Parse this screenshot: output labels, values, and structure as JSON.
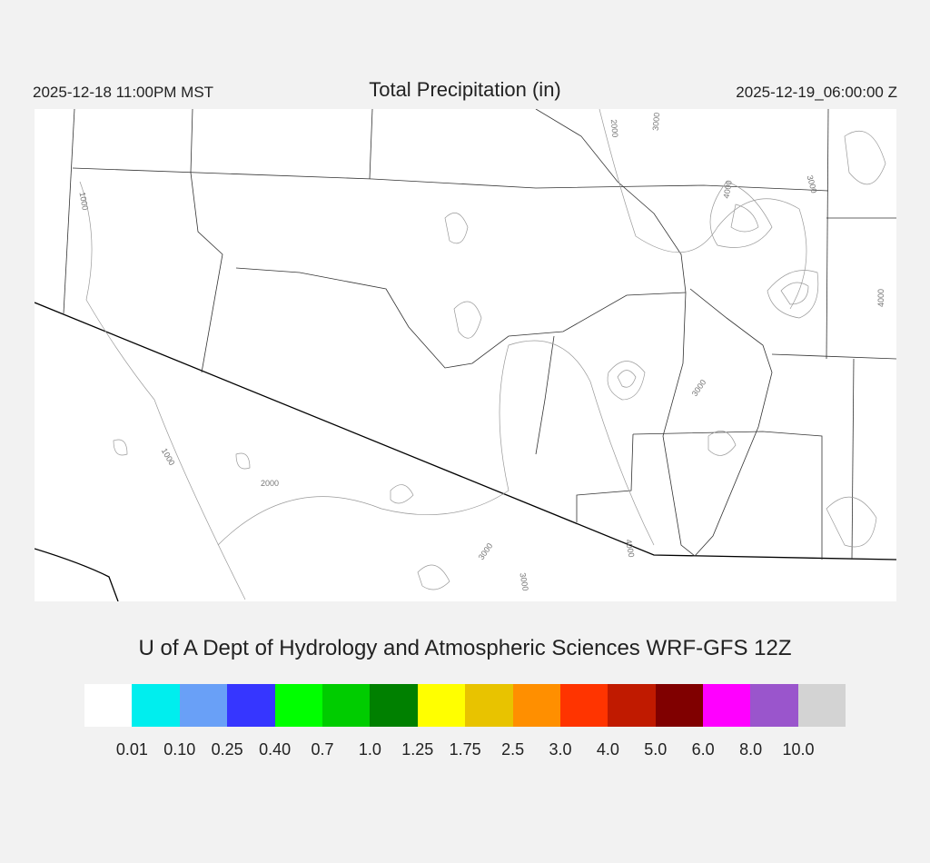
{
  "header": {
    "local_time": "2025-12-18 11:00PM MST",
    "title": "Total Precipitation (in)",
    "valid_time": "2025-12-19_06:00:00 Z"
  },
  "map": {
    "contour_labels": [
      "1000",
      "1000",
      "2000",
      "2000",
      "3000",
      "3000",
      "3000",
      "3000",
      "3000",
      "4000",
      "4000",
      "4000"
    ]
  },
  "credit": "U of A Dept of Hydrology and Atmospheric Sciences WRF-GFS 12Z",
  "legend": {
    "colors": [
      "#ffffff",
      "#00eeee",
      "#69a0f7",
      "#3636ff",
      "#00ff00",
      "#00cc00",
      "#008000",
      "#ffff00",
      "#e8c300",
      "#ff8f00",
      "#ff3400",
      "#c01a00",
      "#800000",
      "#ff00ff",
      "#9a55cc",
      "#d3d3d3"
    ],
    "labels": [
      "0.01",
      "0.10",
      "0.25",
      "0.40",
      "0.7",
      "1.0",
      "1.25",
      "1.75",
      "2.5",
      "3.0",
      "4.0",
      "5.0",
      "6.0",
      "8.0",
      "10.0"
    ]
  }
}
